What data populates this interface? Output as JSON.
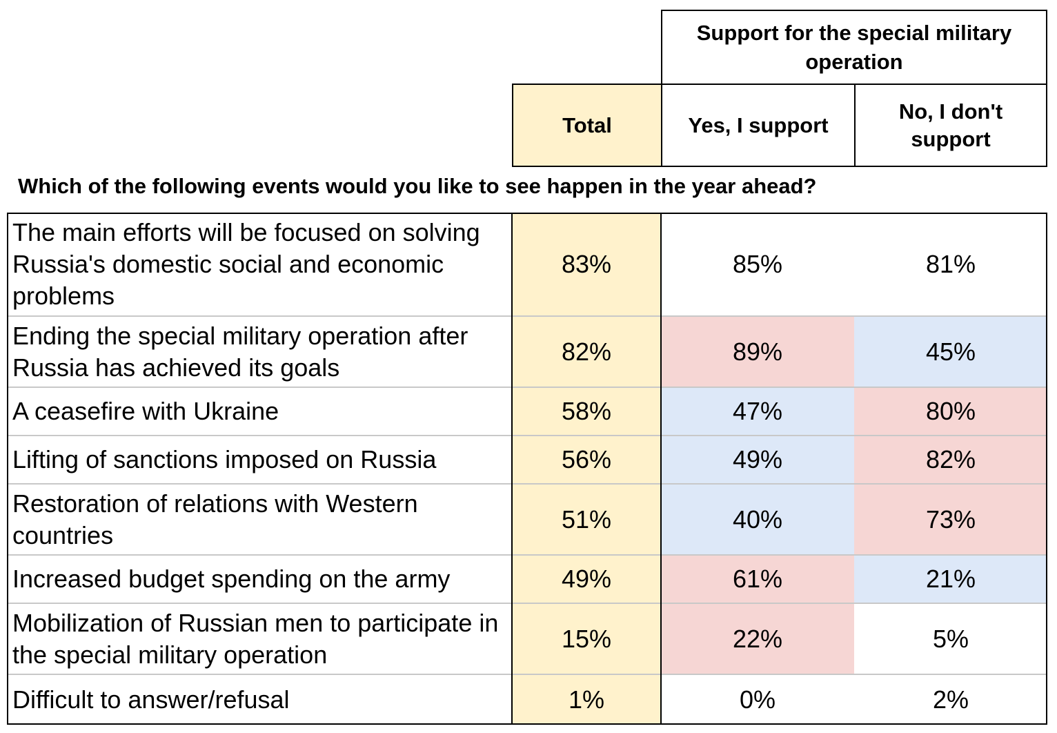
{
  "colors": {
    "total_fill": "#fff2cc",
    "high_fill": "#f6d6d4",
    "low_fill": "#dde8f8",
    "neutral_fill": "#ffffff"
  },
  "chart_data": {
    "type": "table",
    "group_header": "Support for the special military\noperation",
    "columns": [
      "Total",
      "Yes, I support",
      "No, I don't\nsupport"
    ],
    "question": "Which of the following events would you like to see happen in the year ahead?",
    "rows": [
      {
        "label": "The main efforts will be focused on solving Russia's domestic social and economic problems",
        "total": "83%",
        "yes": "85%",
        "no": "81%",
        "yes_fill": "neutral",
        "no_fill": "neutral"
      },
      {
        "label": "Ending the special military operation after Russia has achieved its goals",
        "total": "82%",
        "yes": "89%",
        "no": "45%",
        "yes_fill": "high",
        "no_fill": "low"
      },
      {
        "label": "A ceasefire with Ukraine",
        "total": "58%",
        "yes": "47%",
        "no": "80%",
        "yes_fill": "low",
        "no_fill": "high"
      },
      {
        "label": "Lifting of sanctions imposed on Russia",
        "total": "56%",
        "yes": "49%",
        "no": "82%",
        "yes_fill": "low",
        "no_fill": "high"
      },
      {
        "label": "Restoration of relations with Western countries",
        "total": "51%",
        "yes": "40%",
        "no": "73%",
        "yes_fill": "low",
        "no_fill": "high"
      },
      {
        "label": "Increased budget spending on the army",
        "total": "49%",
        "yes": "61%",
        "no": "21%",
        "yes_fill": "high",
        "no_fill": "low"
      },
      {
        "label": "Mobilization of Russian men to participate in the special military operation",
        "total": "15%",
        "yes": "22%",
        "no": "5%",
        "yes_fill": "high",
        "no_fill": "neutral"
      },
      {
        "label": "Difficult to answer/refusal",
        "total": "1%",
        "yes": "0%",
        "no": "2%",
        "yes_fill": "neutral",
        "no_fill": "neutral"
      }
    ]
  }
}
